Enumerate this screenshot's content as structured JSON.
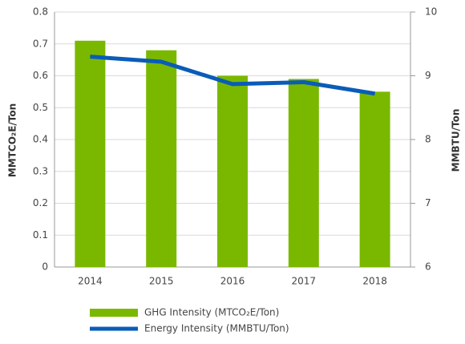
{
  "chart_data": {
    "type": "bar",
    "categories": [
      "2014",
      "2015",
      "2016",
      "2017",
      "2018"
    ],
    "ylabel": "MMTCO₂E/Ton",
    "y2label": "MMBTU/Ton",
    "ylim": [
      0,
      0.8
    ],
    "yticks": [
      0,
      0.1,
      0.2,
      0.3,
      0.4,
      0.5,
      0.6,
      0.7,
      0.8
    ],
    "y2lim": [
      6,
      10
    ],
    "y2ticks": [
      6,
      7,
      8,
      9,
      10
    ],
    "grid": true,
    "series": [
      {
        "name": "GHG Intensity (MTCO₂E/Ton)",
        "type": "bar",
        "color": "#7ab800",
        "values": [
          0.71,
          0.68,
          0.6,
          0.59,
          0.55
        ]
      },
      {
        "name": "Energy Intensity (MMBTU/Ton)",
        "type": "line",
        "axis": "y2",
        "color": "#0a5cb8",
        "values": [
          9.3,
          9.22,
          8.87,
          8.9,
          8.72
        ]
      }
    ]
  }
}
